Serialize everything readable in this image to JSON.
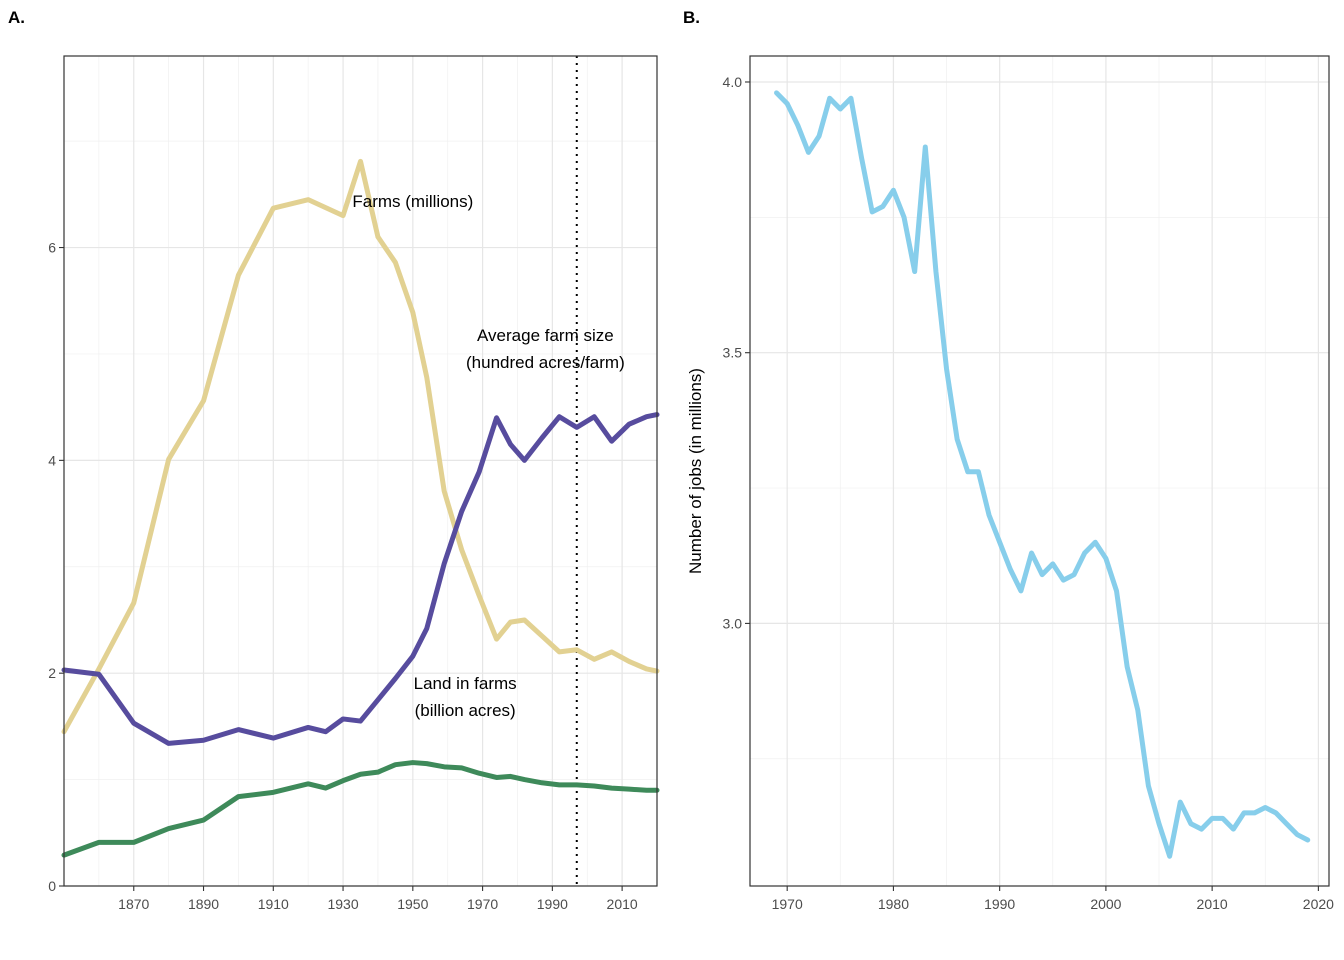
{
  "chart_data": [
    {
      "type": "line",
      "panel_label": "A.",
      "xlim": [
        1850,
        2020
      ],
      "ylim": [
        0,
        7.8
      ],
      "x_ticks": [
        1870,
        1890,
        1910,
        1930,
        1950,
        1970,
        1990,
        2010
      ],
      "y_ticks": [
        0,
        2,
        4,
        6
      ],
      "grid": true,
      "vline": {
        "x": 1997,
        "style": "dotted"
      },
      "series": [
        {
          "name": "Farms (millions)",
          "label_lines": [
            "Farms (millions)"
          ],
          "color": "#e2d192",
          "label_at": {
            "x": 1950,
            "y": 6.38
          },
          "points": [
            [
              1850,
              1.45
            ],
            [
              1860,
              2.04
            ],
            [
              1870,
              2.66
            ],
            [
              1880,
              4.01
            ],
            [
              1890,
              4.56
            ],
            [
              1900,
              5.74
            ],
            [
              1910,
              6.37
            ],
            [
              1920,
              6.45
            ],
            [
              1930,
              6.3
            ],
            [
              1935,
              6.81
            ],
            [
              1940,
              6.1
            ],
            [
              1945,
              5.86
            ],
            [
              1950,
              5.39
            ],
            [
              1954,
              4.78
            ],
            [
              1959,
              3.71
            ],
            [
              1964,
              3.16
            ],
            [
              1969,
              2.73
            ],
            [
              1974,
              2.32
            ],
            [
              1978,
              2.48
            ],
            [
              1982,
              2.5
            ],
            [
              1987,
              2.35
            ],
            [
              1992,
              2.2
            ],
            [
              1997,
              2.22
            ],
            [
              2002,
              2.13
            ],
            [
              2007,
              2.2
            ],
            [
              2012,
              2.11
            ],
            [
              2017,
              2.04
            ],
            [
              2020,
              2.02
            ]
          ]
        },
        {
          "name": "Average farm size (hundred acres/farm)",
          "label_lines": [
            "Average farm size",
            "(hundred acres/farm)"
          ],
          "color": "#574c9e",
          "label_at": {
            "x": 1988,
            "y": 5.12
          },
          "points": [
            [
              1850,
              2.03
            ],
            [
              1860,
              1.99
            ],
            [
              1870,
              1.53
            ],
            [
              1880,
              1.34
            ],
            [
              1890,
              1.37
            ],
            [
              1900,
              1.47
            ],
            [
              1910,
              1.39
            ],
            [
              1920,
              1.49
            ],
            [
              1925,
              1.45
            ],
            [
              1930,
              1.57
            ],
            [
              1935,
              1.55
            ],
            [
              1940,
              1.75
            ],
            [
              1945,
              1.95
            ],
            [
              1950,
              2.16
            ],
            [
              1954,
              2.42
            ],
            [
              1959,
              3.03
            ],
            [
              1964,
              3.52
            ],
            [
              1969,
              3.89
            ],
            [
              1974,
              4.4
            ],
            [
              1978,
              4.15
            ],
            [
              1982,
              4.0
            ],
            [
              1987,
              4.21
            ],
            [
              1992,
              4.41
            ],
            [
              1997,
              4.31
            ],
            [
              2002,
              4.41
            ],
            [
              2007,
              4.18
            ],
            [
              2012,
              4.34
            ],
            [
              2017,
              4.41
            ],
            [
              2020,
              4.43
            ]
          ]
        },
        {
          "name": "Land in farms (billion acres)",
          "label_lines": [
            "Land in farms",
            "(billion acres)"
          ],
          "color": "#3e8a5a",
          "label_at": {
            "x": 1965,
            "y": 1.85
          },
          "points": [
            [
              1850,
              0.29
            ],
            [
              1860,
              0.41
            ],
            [
              1870,
              0.41
            ],
            [
              1880,
              0.54
            ],
            [
              1890,
              0.62
            ],
            [
              1900,
              0.84
            ],
            [
              1910,
              0.88
            ],
            [
              1920,
              0.96
            ],
            [
              1925,
              0.92
            ],
            [
              1930,
              0.99
            ],
            [
              1935,
              1.05
            ],
            [
              1940,
              1.07
            ],
            [
              1945,
              1.14
            ],
            [
              1950,
              1.16
            ],
            [
              1954,
              1.15
            ],
            [
              1959,
              1.12
            ],
            [
              1964,
              1.11
            ],
            [
              1969,
              1.06
            ],
            [
              1974,
              1.02
            ],
            [
              1978,
              1.03
            ],
            [
              1982,
              1.0
            ],
            [
              1987,
              0.97
            ],
            [
              1992,
              0.95
            ],
            [
              1997,
              0.95
            ],
            [
              2002,
              0.94
            ],
            [
              2007,
              0.92
            ],
            [
              2012,
              0.91
            ],
            [
              2017,
              0.9
            ],
            [
              2020,
              0.9
            ]
          ]
        }
      ]
    },
    {
      "type": "line",
      "panel_label": "B.",
      "ylabel": "Number of jobs (in millions)",
      "xlim": [
        1966.5,
        2021
      ],
      "ylim": [
        2.515,
        4.048
      ],
      "x_ticks": [
        1970,
        1980,
        1990,
        2000,
        2010,
        2020
      ],
      "y_ticks": [
        3.0,
        3.5,
        4.0
      ],
      "y_tick_labels": [
        "3.0",
        "3.5",
        "4.0"
      ],
      "grid": true,
      "series": [
        {
          "color": "#87ceeb",
          "points": [
            [
              1969,
              3.98
            ],
            [
              1970,
              3.96
            ],
            [
              1971,
              3.92
            ],
            [
              1972,
              3.87
            ],
            [
              1973,
              3.9
            ],
            [
              1974,
              3.97
            ],
            [
              1975,
              3.95
            ],
            [
              1976,
              3.97
            ],
            [
              1977,
              3.86
            ],
            [
              1978,
              3.76
            ],
            [
              1979,
              3.77
            ],
            [
              1980,
              3.8
            ],
            [
              1981,
              3.75
            ],
            [
              1982,
              3.65
            ],
            [
              1983,
              3.88
            ],
            [
              1984,
              3.65
            ],
            [
              1985,
              3.47
            ],
            [
              1986,
              3.34
            ],
            [
              1987,
              3.28
            ],
            [
              1988,
              3.28
            ],
            [
              1989,
              3.2
            ],
            [
              1990,
              3.15
            ],
            [
              1991,
              3.1
            ],
            [
              1992,
              3.06
            ],
            [
              1993,
              3.13
            ],
            [
              1994,
              3.09
            ],
            [
              1995,
              3.11
            ],
            [
              1996,
              3.08
            ],
            [
              1997,
              3.09
            ],
            [
              1998,
              3.13
            ],
            [
              1999,
              3.15
            ],
            [
              2000,
              3.12
            ],
            [
              2001,
              3.06
            ],
            [
              2002,
              2.92
            ],
            [
              2003,
              2.84
            ],
            [
              2004,
              2.7
            ],
            [
              2005,
              2.63
            ],
            [
              2006,
              2.57
            ],
            [
              2007,
              2.67
            ],
            [
              2008,
              2.63
            ],
            [
              2009,
              2.62
            ],
            [
              2010,
              2.64
            ],
            [
              2011,
              2.64
            ],
            [
              2012,
              2.62
            ],
            [
              2013,
              2.65
            ],
            [
              2014,
              2.65
            ],
            [
              2015,
              2.66
            ],
            [
              2016,
              2.65
            ],
            [
              2017,
              2.63
            ],
            [
              2018,
              2.61
            ],
            [
              2019,
              2.6
            ]
          ]
        }
      ]
    }
  ]
}
